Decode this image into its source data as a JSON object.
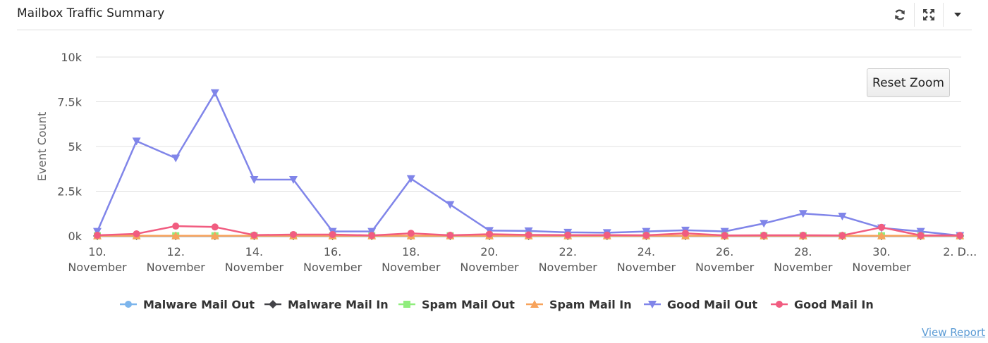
{
  "panel": {
    "title": "Mailbox Traffic Summary",
    "tools": [
      "refresh-icon",
      "expand-icon",
      "caret-down-icon"
    ]
  },
  "reset_zoom_label": "Reset Zoom",
  "view_report_label": "View Report",
  "chart_data": {
    "type": "line",
    "ylabel": "Event Count",
    "ylim": [
      0,
      10000
    ],
    "yticks": [
      {
        "value": 0,
        "label": "0k"
      },
      {
        "value": 2500,
        "label": "2.5k"
      },
      {
        "value": 5000,
        "label": "5k"
      },
      {
        "value": 7500,
        "label": "7.5k"
      },
      {
        "value": 10000,
        "label": "10k"
      }
    ],
    "x": [
      "10 November",
      "11 November",
      "12 November",
      "13 November",
      "14 November",
      "15 November",
      "16 November",
      "17 November",
      "18 November",
      "19 November",
      "20 November",
      "21 November",
      "22 November",
      "23 November",
      "24 November",
      "25 November",
      "26 November",
      "27 November",
      "28 November",
      "29 November",
      "30 November",
      "1 December",
      "2 December"
    ],
    "xticks": [
      {
        "index": 0,
        "lines": [
          "10.",
          "November"
        ]
      },
      {
        "index": 2,
        "lines": [
          "12.",
          "November"
        ]
      },
      {
        "index": 4,
        "lines": [
          "14.",
          "November"
        ]
      },
      {
        "index": 6,
        "lines": [
          "16.",
          "November"
        ]
      },
      {
        "index": 8,
        "lines": [
          "18.",
          "November"
        ]
      },
      {
        "index": 10,
        "lines": [
          "20.",
          "November"
        ]
      },
      {
        "index": 12,
        "lines": [
          "22.",
          "November"
        ]
      },
      {
        "index": 14,
        "lines": [
          "24.",
          "November"
        ]
      },
      {
        "index": 16,
        "lines": [
          "26.",
          "November"
        ]
      },
      {
        "index": 18,
        "lines": [
          "28.",
          "November"
        ]
      },
      {
        "index": 20,
        "lines": [
          "30.",
          "November"
        ]
      },
      {
        "index": 22,
        "lines": [
          "2. D..."
        ]
      }
    ],
    "legend_position": "bottom",
    "grid": true,
    "series": [
      {
        "name": "Malware Mail Out",
        "color": "#7cb5ec",
        "marker": "circle",
        "values": [
          0,
          0,
          0,
          0,
          0,
          0,
          0,
          0,
          0,
          0,
          0,
          0,
          0,
          0,
          0,
          0,
          0,
          0,
          0,
          0,
          0,
          0,
          0
        ]
      },
      {
        "name": "Malware Mail In",
        "color": "#434348",
        "marker": "diamond",
        "values": [
          0,
          0,
          0,
          0,
          0,
          0,
          0,
          0,
          0,
          0,
          0,
          0,
          0,
          0,
          0,
          0,
          0,
          0,
          0,
          0,
          0,
          0,
          0
        ]
      },
      {
        "name": "Spam Mail Out",
        "color": "#90ed7d",
        "marker": "square",
        "values": [
          10,
          10,
          10,
          10,
          10,
          10,
          10,
          10,
          10,
          10,
          10,
          10,
          10,
          10,
          10,
          10,
          10,
          10,
          10,
          10,
          10,
          10,
          10
        ]
      },
      {
        "name": "Spam Mail In",
        "color": "#f7a35c",
        "marker": "triangle",
        "values": [
          10,
          10,
          10,
          10,
          10,
          10,
          10,
          10,
          10,
          10,
          10,
          10,
          10,
          10,
          10,
          10,
          10,
          10,
          10,
          10,
          10,
          10,
          10
        ]
      },
      {
        "name": "Good Mail Out",
        "color": "#8085e9",
        "marker": "triangle-down",
        "values": [
          250,
          5300,
          4350,
          8000,
          3150,
          3150,
          250,
          250,
          3200,
          1750,
          300,
          280,
          200,
          180,
          250,
          320,
          250,
          700,
          1250,
          1100,
          450,
          250,
          20
        ]
      },
      {
        "name": "Good Mail In",
        "color": "#f15c80",
        "marker": "circle",
        "values": [
          40,
          120,
          550,
          500,
          50,
          80,
          80,
          30,
          150,
          40,
          100,
          60,
          50,
          50,
          40,
          150,
          30,
          40,
          40,
          30,
          480,
          30,
          30
        ]
      }
    ]
  }
}
